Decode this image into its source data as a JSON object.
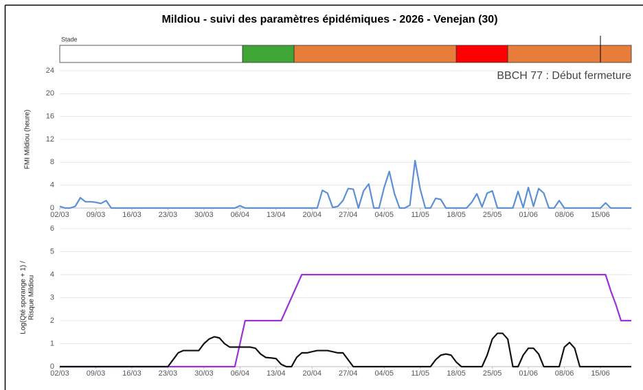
{
  "chart_data": [
    {
      "type": "timeline",
      "title": "Mildiou - suivi des paramètres épidémiques - 2026 - Venejan (30)",
      "label": "Stade",
      "xlim": [
        0,
        111
      ],
      "segments": [
        {
          "start": 0,
          "end": 35.5,
          "color": "#ffffff"
        },
        {
          "start": 35.5,
          "end": 45.5,
          "color": "#3fa535"
        },
        {
          "start": 45.5,
          "end": 77,
          "color": "#e87c3a"
        },
        {
          "start": 77,
          "end": 87,
          "color": "#ff0000"
        },
        {
          "start": 87,
          "end": 111,
          "color": "#e87c3a"
        }
      ],
      "marker": 105
    },
    {
      "type": "line",
      "ylabel": [
        "FMI Mildiou (heure)"
      ],
      "annotation": "BBCH 77 : Début fermeture",
      "grid": true,
      "xlim": [
        0,
        111
      ],
      "ylim": [
        0,
        24
      ],
      "yticks": [
        0,
        4,
        8,
        12,
        16,
        20,
        24
      ],
      "xticks": [
        {
          "value": 0,
          "label": "02/03"
        },
        {
          "value": 7,
          "label": "09/03"
        },
        {
          "value": 14,
          "label": "16/03"
        },
        {
          "value": 21,
          "label": "23/03"
        },
        {
          "value": 28,
          "label": "30/03"
        },
        {
          "value": 35,
          "label": "06/04"
        },
        {
          "value": 42,
          "label": "13/04"
        },
        {
          "value": 49,
          "label": "20/04"
        },
        {
          "value": 56,
          "label": "27/04"
        },
        {
          "value": 63,
          "label": "04/05"
        },
        {
          "value": 70,
          "label": "11/05"
        },
        {
          "value": 77,
          "label": "18/05"
        },
        {
          "value": 84,
          "label": "25/05"
        },
        {
          "value": 91,
          "label": "01/06"
        },
        {
          "value": 98,
          "label": "08/06"
        },
        {
          "value": 105,
          "label": "15/06"
        }
      ],
      "x": [
        0,
        1,
        2,
        3,
        4,
        5,
        6,
        7,
        8,
        9,
        10,
        11,
        12,
        13,
        14,
        15,
        16,
        17,
        18,
        19,
        20,
        21,
        22,
        23,
        24,
        25,
        26,
        27,
        28,
        29,
        30,
        31,
        32,
        33,
        34,
        35,
        36,
        37,
        38,
        39,
        40,
        41,
        42,
        43,
        44,
        45,
        46,
        47,
        48,
        49,
        50,
        51,
        52,
        53,
        54,
        55,
        56,
        57,
        58,
        59,
        60,
        61,
        62,
        63,
        64,
        65,
        66,
        67,
        68,
        69,
        70,
        71,
        72,
        73,
        74,
        75,
        76,
        77,
        78,
        79,
        80,
        81,
        82,
        83,
        84,
        85,
        86,
        87,
        88,
        89,
        90,
        91,
        92,
        93,
        94,
        95,
        96,
        97,
        98,
        99,
        100,
        101,
        102,
        103,
        104,
        105,
        106,
        107,
        108,
        109,
        110,
        111
      ],
      "series": [
        {
          "color": "#5b8fd6",
          "values": [
            0.3,
            0,
            0,
            0.3,
            1.8,
            1.1,
            1.1,
            1.0,
            0.8,
            1.3,
            0,
            0,
            0,
            0,
            0,
            0,
            0,
            0,
            0,
            0,
            0,
            0,
            0,
            0,
            0,
            0,
            0,
            0,
            0,
            0,
            0,
            0,
            0,
            0,
            0,
            0.4,
            0,
            0,
            0,
            0,
            0,
            0,
            0,
            0,
            0,
            0,
            0,
            0,
            0,
            0,
            0,
            3.1,
            2.6,
            0.1,
            0.3,
            1.3,
            3.4,
            3.3,
            0,
            3.0,
            4.2,
            0,
            0,
            3.6,
            6.4,
            2.5,
            0,
            0,
            0.5,
            8.3,
            3.3,
            0,
            0,
            1.7,
            1.5,
            0,
            0,
            0,
            0,
            0,
            1.0,
            2.5,
            0.2,
            2.6,
            3.0,
            0,
            0,
            0,
            0,
            2.9,
            0.1,
            3.6,
            0.3,
            3.4,
            2.6,
            0,
            0,
            1.3,
            0,
            0,
            0,
            0,
            0,
            0,
            0,
            0,
            0.9,
            0,
            0,
            0,
            0,
            0
          ]
        }
      ]
    },
    {
      "type": "line",
      "ylabel": [
        "Log(Qté sporange + 1) /",
        "Risque Mildiou"
      ],
      "grid": true,
      "xlim": [
        0,
        111
      ],
      "ylim": [
        0,
        6
      ],
      "yticks": [
        0,
        1,
        2,
        3,
        4,
        5,
        6
      ],
      "xticks": [
        {
          "value": 0,
          "label": "02/03"
        },
        {
          "value": 7,
          "label": "09/03"
        },
        {
          "value": 14,
          "label": "16/03"
        },
        {
          "value": 21,
          "label": "23/03"
        },
        {
          "value": 28,
          "label": "30/03"
        },
        {
          "value": 35,
          "label": "06/04"
        },
        {
          "value": 42,
          "label": "13/04"
        },
        {
          "value": 49,
          "label": "20/04"
        },
        {
          "value": 56,
          "label": "27/04"
        },
        {
          "value": 63,
          "label": "04/05"
        },
        {
          "value": 70,
          "label": "11/05"
        },
        {
          "value": 77,
          "label": "18/05"
        },
        {
          "value": 84,
          "label": "25/05"
        },
        {
          "value": 91,
          "label": "01/06"
        },
        {
          "value": 98,
          "label": "08/06"
        },
        {
          "value": 105,
          "label": "15/06"
        }
      ],
      "x": [
        0,
        1,
        2,
        3,
        4,
        5,
        6,
        7,
        8,
        9,
        10,
        11,
        12,
        13,
        14,
        15,
        16,
        17,
        18,
        19,
        20,
        21,
        22,
        23,
        24,
        25,
        26,
        27,
        28,
        29,
        30,
        31,
        32,
        33,
        34,
        35,
        36,
        37,
        38,
        39,
        40,
        41,
        42,
        43,
        44,
        45,
        46,
        47,
        48,
        49,
        50,
        51,
        52,
        53,
        54,
        55,
        56,
        57,
        58,
        59,
        60,
        61,
        62,
        63,
        64,
        65,
        66,
        67,
        68,
        69,
        70,
        71,
        72,
        73,
        74,
        75,
        76,
        77,
        78,
        79,
        80,
        81,
        82,
        83,
        84,
        85,
        86,
        87,
        88,
        89,
        90,
        91,
        92,
        93,
        94,
        95,
        96,
        97,
        98,
        99,
        100,
        101,
        102,
        103,
        104,
        105,
        106,
        107,
        108,
        109,
        110,
        111
      ],
      "series": [
        {
          "color": "#9b30d9",
          "values": [
            0,
            0,
            0,
            0,
            0,
            0,
            0,
            0,
            0,
            0,
            0,
            0,
            0,
            0,
            0,
            0,
            0,
            0,
            0,
            0,
            0,
            0,
            0,
            0,
            0,
            0,
            0,
            0,
            0,
            0,
            0,
            0,
            0,
            0,
            0,
            1,
            2,
            2,
            2,
            2,
            2,
            2,
            2,
            2,
            2.5,
            3,
            3.5,
            4,
            4,
            4,
            4,
            4,
            4,
            4,
            4,
            4,
            4,
            4,
            4,
            4,
            4,
            4,
            4,
            4,
            4,
            4,
            4,
            4,
            4,
            4,
            4,
            4,
            4,
            4,
            4,
            4,
            4,
            4,
            4,
            4,
            4,
            4,
            4,
            4,
            4,
            4,
            4,
            4,
            4,
            4,
            4,
            4,
            4,
            4,
            4,
            4,
            4,
            4,
            4,
            4,
            4,
            4,
            4,
            4,
            4,
            4,
            4,
            3.3,
            2.7,
            2,
            2,
            2
          ]
        },
        {
          "color": "#111111",
          "values": [
            0,
            0,
            0,
            0,
            0,
            0,
            0,
            0,
            0,
            0,
            0,
            0,
            0,
            0,
            0,
            0,
            0,
            0,
            0,
            0,
            0,
            0,
            0.3,
            0.6,
            0.7,
            0.7,
            0.7,
            0.7,
            1.0,
            1.2,
            1.3,
            1.25,
            1.0,
            0.85,
            0.85,
            0.85,
            0.85,
            0.85,
            0.8,
            0.55,
            0.4,
            0.38,
            0.35,
            0.1,
            0,
            0,
            0.4,
            0.6,
            0.6,
            0.65,
            0.7,
            0.7,
            0.7,
            0.65,
            0.6,
            0.6,
            0.3,
            0,
            0,
            0,
            0,
            0,
            0,
            0,
            0,
            0,
            0,
            0,
            0,
            0,
            0,
            0,
            0,
            0.3,
            0.5,
            0.55,
            0.5,
            0.2,
            0,
            0,
            0,
            0,
            0,
            0.5,
            1.2,
            1.45,
            1.45,
            1.2,
            0,
            0,
            0.5,
            0.8,
            0.8,
            0.55,
            0,
            0,
            0,
            0,
            0.85,
            1.05,
            0.8,
            0,
            0,
            0,
            0,
            0,
            0,
            0,
            0,
            0,
            0,
            0
          ]
        }
      ]
    }
  ]
}
